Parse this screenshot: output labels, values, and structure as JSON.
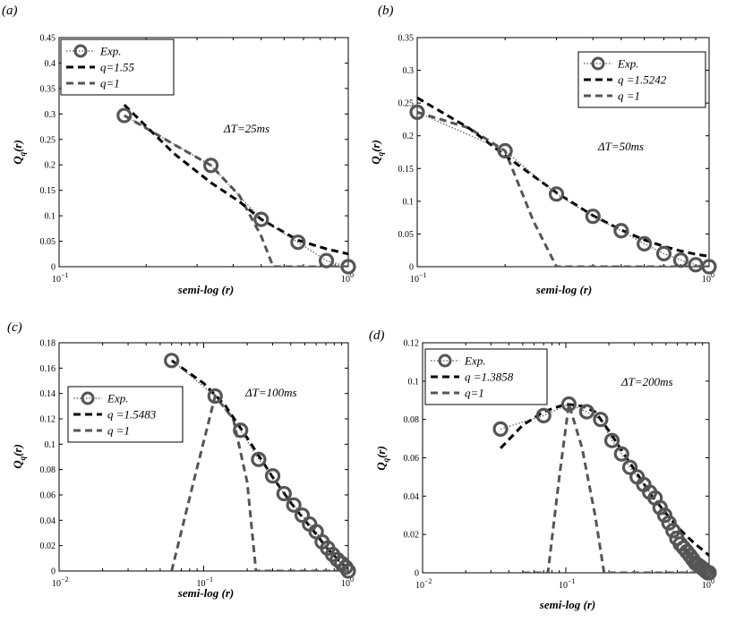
{
  "chart_data": [
    {
      "panel_label": "(a)",
      "type": "line",
      "xscale": "log",
      "xlim": [
        0.1,
        1
      ],
      "ylim": [
        0,
        0.45
      ],
      "yticks": [
        "0",
        "0.05",
        "0.1",
        "0.15",
        "0.2",
        "0.25",
        "0.3",
        "0.35",
        "0.4",
        "0.45"
      ],
      "xlabel": "semi-log (r)",
      "ylabel": "Qq(r)",
      "legend_position": "top-left",
      "annotation": "ΔT=25ms",
      "series": [
        {
          "name": "Exp.",
          "style": "circles-dotted",
          "color": "#555555",
          "x": [
            0.168,
            0.335,
            0.5,
            0.67,
            0.84,
            1.0
          ],
          "y": [
            0.297,
            0.199,
            0.093,
            0.048,
            0.012,
            0.0
          ]
        },
        {
          "name": "q=1.55",
          "style": "dashed",
          "color": "#000000",
          "x": [
            0.168,
            0.25,
            0.335,
            0.42,
            0.5,
            0.67,
            0.84,
            1.0
          ],
          "y": [
            0.318,
            0.222,
            0.165,
            0.128,
            0.093,
            0.052,
            0.035,
            0.025
          ]
        },
        {
          "name": "q=1",
          "style": "dashed",
          "color": "#555555",
          "x": [
            0.168,
            0.25,
            0.335,
            0.42,
            0.5,
            0.55,
            0.67,
            0.84,
            1.0
          ],
          "y": [
            0.297,
            0.24,
            0.199,
            0.14,
            0.06,
            0.0,
            0.0,
            0.0,
            0.0
          ]
        }
      ]
    },
    {
      "panel_label": "(b)",
      "type": "line",
      "xscale": "log",
      "xlim": [
        0.1,
        1
      ],
      "ylim": [
        0,
        0.35
      ],
      "yticks": [
        "0",
        "0.05",
        "0.1",
        "0.15",
        "0.2",
        "0.25",
        "0.3",
        "0.35"
      ],
      "xlabel": "semi-log (r)",
      "ylabel": "Qq(r)",
      "legend_position": "top-right",
      "annotation": "ΔT=50ms",
      "series": [
        {
          "name": "Exp.",
          "style": "circles-dotted",
          "color": "#555555",
          "x": [
            0.1,
            0.2,
            0.3,
            0.4,
            0.5,
            0.6,
            0.7,
            0.8,
            0.9,
            1.0
          ],
          "y": [
            0.236,
            0.177,
            0.111,
            0.077,
            0.055,
            0.035,
            0.02,
            0.01,
            0.003,
            0.0
          ]
        },
        {
          "name": "q =1.5242",
          "style": "dashed",
          "color": "#000000",
          "x": [
            0.1,
            0.15,
            0.2,
            0.3,
            0.4,
            0.5,
            0.6,
            0.7,
            0.8,
            0.9,
            1.0
          ],
          "y": [
            0.258,
            0.212,
            0.17,
            0.113,
            0.078,
            0.056,
            0.041,
            0.031,
            0.024,
            0.019,
            0.016
          ]
        },
        {
          "name": "q =1",
          "style": "dashed",
          "color": "#555555",
          "x": [
            0.1,
            0.15,
            0.2,
            0.25,
            0.3,
            0.5,
            0.7,
            1.0
          ],
          "y": [
            0.236,
            0.212,
            0.177,
            0.07,
            0.0,
            0.0,
            0.0,
            0.0
          ]
        }
      ]
    },
    {
      "panel_label": "(c)",
      "type": "line",
      "xscale": "log",
      "xlim": [
        0.01,
        1
      ],
      "ylim": [
        0,
        0.18
      ],
      "yticks": [
        "0",
        "0.02",
        "0.04",
        "0.06",
        "0.08",
        "0.1",
        "0.12",
        "0.14",
        "0.16",
        "0.18"
      ],
      "xlabel": "semi-log (r)",
      "ylabel": "Qq(r)",
      "legend_position": "center-left",
      "annotation": "ΔT=100ms",
      "series": [
        {
          "name": "Exp.",
          "style": "circles-dotted",
          "color": "#555555",
          "x": [
            0.06,
            0.12,
            0.18,
            0.24,
            0.3,
            0.36,
            0.42,
            0.48,
            0.54,
            0.6,
            0.66,
            0.72,
            0.78,
            0.84,
            0.9,
            0.96,
            1.0
          ],
          "y": [
            0.166,
            0.138,
            0.111,
            0.088,
            0.075,
            0.061,
            0.052,
            0.044,
            0.037,
            0.031,
            0.023,
            0.018,
            0.013,
            0.009,
            0.006,
            0.003,
            0.0
          ]
        },
        {
          "name": "q =1.5483",
          "style": "dashed",
          "color": "#000000",
          "x": [
            0.06,
            0.1,
            0.14,
            0.2,
            0.3,
            0.4,
            0.5,
            0.6,
            0.7,
            0.8,
            0.9,
            1.0
          ],
          "y": [
            0.166,
            0.148,
            0.131,
            0.105,
            0.074,
            0.054,
            0.04,
            0.029,
            0.019,
            0.012,
            0.006,
            0.002
          ]
        },
        {
          "name": "q =1",
          "style": "dashed",
          "color": "#555555",
          "x": [
            0.06,
            0.085,
            0.12,
            0.16,
            0.2,
            0.23,
            0.3,
            0.6,
            1.0
          ],
          "y": [
            0.0,
            0.07,
            0.138,
            0.12,
            0.07,
            0.0,
            0.0,
            0.0,
            0.0
          ]
        }
      ]
    },
    {
      "panel_label": "(d)",
      "type": "line",
      "xscale": "log",
      "xlim": [
        0.01,
        1
      ],
      "ylim": [
        0,
        0.12
      ],
      "yticks": [
        "0",
        "0.02",
        "0.04",
        "0.06",
        "0.08",
        "0.1",
        "0.12"
      ],
      "xlabel": "semi-log (r)",
      "ylabel": "Qq(r)",
      "legend_position": "top-left",
      "annotation": "ΔT=200ms",
      "series": [
        {
          "name": "Exp.",
          "style": "circles-dotted",
          "color": "#555555",
          "x": [
            0.035,
            0.07,
            0.105,
            0.14,
            0.175,
            0.21,
            0.245,
            0.28,
            0.315,
            0.35,
            0.385,
            0.42,
            0.455,
            0.49,
            0.525,
            0.56,
            0.595,
            0.63,
            0.665,
            0.7,
            0.735,
            0.77,
            0.805,
            0.84,
            0.875,
            0.91,
            0.945,
            0.98,
            1.0
          ],
          "y": [
            0.075,
            0.082,
            0.088,
            0.084,
            0.08,
            0.069,
            0.062,
            0.055,
            0.05,
            0.046,
            0.042,
            0.039,
            0.034,
            0.03,
            0.026,
            0.022,
            0.018,
            0.015,
            0.013,
            0.011,
            0.009,
            0.007,
            0.005,
            0.004,
            0.003,
            0.002,
            0.001,
            0.0,
            0.0
          ]
        },
        {
          "name": "q =1.3858",
          "style": "dashed",
          "color": "#000000",
          "x": [
            0.035,
            0.05,
            0.07,
            0.1,
            0.13,
            0.16,
            0.2,
            0.3,
            0.4,
            0.5,
            0.6,
            0.7,
            0.8,
            0.9,
            1.0
          ],
          "y": [
            0.065,
            0.077,
            0.084,
            0.088,
            0.087,
            0.084,
            0.074,
            0.054,
            0.04,
            0.031,
            0.024,
            0.019,
            0.015,
            0.012,
            0.009
          ]
        },
        {
          "name": "q=1",
          "style": "dashed",
          "color": "#555555",
          "x": [
            0.05,
            0.075,
            0.09,
            0.105,
            0.13,
            0.16,
            0.185,
            0.3,
            0.6,
            1.0
          ],
          "y": [
            0.0,
            0.0,
            0.05,
            0.088,
            0.065,
            0.03,
            0.0,
            0.0,
            0.0,
            0.0
          ]
        }
      ]
    }
  ]
}
